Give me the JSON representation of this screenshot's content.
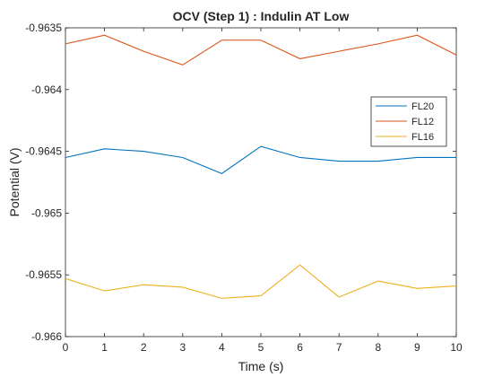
{
  "chart_data": {
    "type": "line",
    "title": "OCV (Step 1) : Indulin AT Low",
    "xlabel": "Time (s)",
    "ylabel": "Potential (V)",
    "xlim": [
      0,
      10
    ],
    "ylim": [
      -0.966,
      -0.9635
    ],
    "x_ticks": [
      0,
      1,
      2,
      3,
      4,
      5,
      6,
      7,
      8,
      9,
      10
    ],
    "x_tick_labels": [
      "0",
      "1",
      "2",
      "3",
      "4",
      "5",
      "6",
      "7",
      "8",
      "9",
      "10"
    ],
    "y_ticks": [
      -0.966,
      -0.9655,
      -0.965,
      -0.9645,
      -0.964,
      -0.9635
    ],
    "y_tick_labels": [
      "-0.966",
      "-0.9655",
      "-0.965",
      "-0.9645",
      "-0.964",
      "-0.9635"
    ],
    "grid": false,
    "legend_position": "top-right",
    "x": [
      0,
      1,
      2,
      3,
      4,
      5,
      6,
      7,
      8,
      9,
      10
    ],
    "series": [
      {
        "name": "FL20",
        "color": "#0072BD",
        "values": [
          -0.96455,
          -0.96448,
          -0.9645,
          -0.96455,
          -0.96468,
          -0.96446,
          -0.96455,
          -0.96458,
          -0.96458,
          -0.96455,
          -0.96455
        ]
      },
      {
        "name": "FL12",
        "color": "#D95319",
        "values": [
          -0.96363,
          -0.96356,
          -0.96369,
          -0.9638,
          -0.9636,
          -0.9636,
          -0.96375,
          -0.96369,
          -0.96363,
          -0.96356,
          -0.96372
        ]
      },
      {
        "name": "FL16",
        "color": "#EDB120",
        "values": [
          -0.96553,
          -0.96563,
          -0.96558,
          -0.9656,
          -0.96569,
          -0.96567,
          -0.96542,
          -0.96568,
          -0.96555,
          -0.96561,
          -0.96559
        ]
      }
    ]
  }
}
